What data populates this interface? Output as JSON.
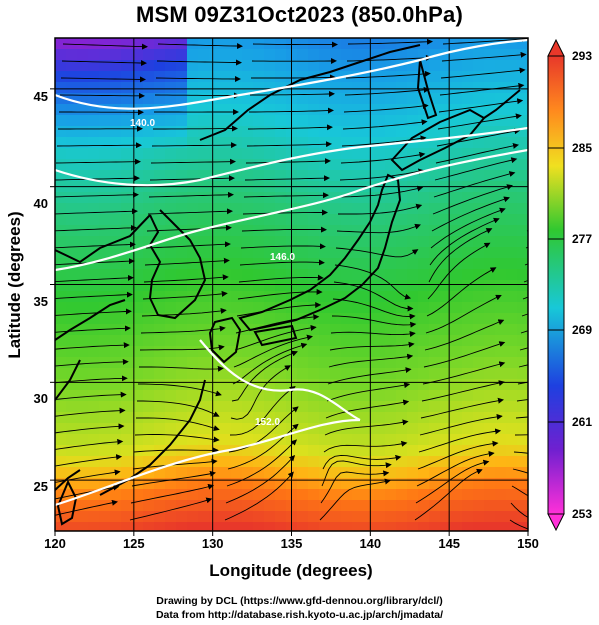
{
  "title": "MSM 09Z31Oct2023 (850.0hPa)",
  "axes": {
    "xlabel": "Longitude (degrees)",
    "ylabel": "Latitude  (degrees)",
    "xticks": [
      "120",
      "125",
      "130",
      "135",
      "140",
      "145",
      "150"
    ],
    "yticks": [
      "25",
      "30",
      "35",
      "40",
      "45"
    ],
    "xlim": [
      120,
      150
    ],
    "ylim": [
      22.4,
      47.6
    ]
  },
  "colorbar": {
    "ticks": [
      "293",
      "285",
      "277",
      "269",
      "261",
      "253"
    ],
    "range": [
      253,
      293
    ],
    "units_hint": "temperature"
  },
  "contour_labels": [
    "140.0",
    "146.0",
    "152.0"
  ],
  "credits": {
    "line1": "Drawing by DCL (https://www.gfd-dennou.org/library/dcl/)",
    "line2": "Data from http://database.rish.kyoto-u.ac.jp/arch/jmadata/"
  },
  "colors": {
    "cold": "#1e90ff",
    "mid": "#2ecc40",
    "warm": "#ff6a00",
    "contour": "#ffffff"
  }
}
